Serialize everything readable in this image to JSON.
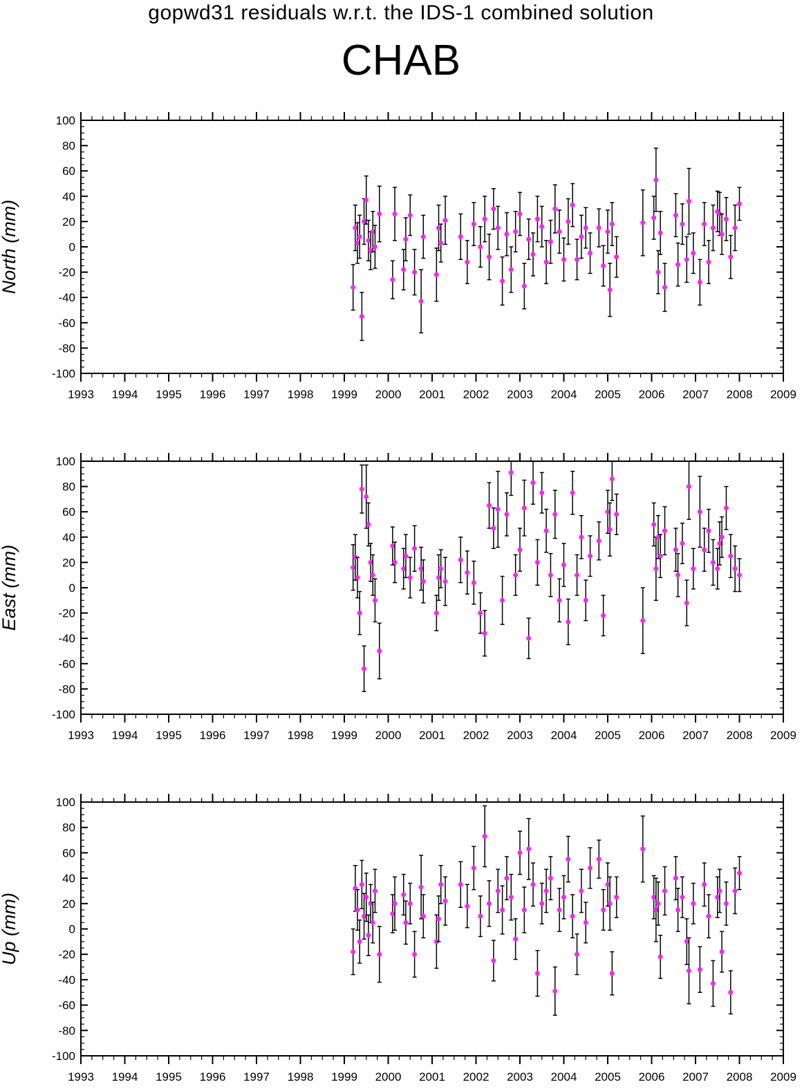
{
  "header": {
    "subtitle": "gopwd31 residuals w.r.t. the IDS-1 combined solution",
    "title": "CHAB"
  },
  "colors": {
    "point": "#ff22ff",
    "errorbar": "#000000",
    "axis": "#000000"
  },
  "chart_data": [
    {
      "type": "scatter",
      "ylabel": "North (mm)",
      "xlim": [
        1993,
        2009
      ],
      "ylim": [
        -100,
        100
      ],
      "xticks": [
        1993,
        1994,
        1995,
        1996,
        1997,
        1998,
        1999,
        2000,
        2001,
        2002,
        2003,
        2004,
        2005,
        2006,
        2007,
        2008,
        2009
      ],
      "yticks": [
        -100,
        -80,
        -60,
        -40,
        -20,
        0,
        20,
        40,
        60,
        80,
        100
      ],
      "grid": false,
      "series": [
        {
          "x": [
            1999.2,
            1999.25,
            1999.3,
            1999.35,
            1999.4,
            1999.45,
            1999.5,
            1999.55,
            1999.6,
            1999.65,
            1999.7,
            1999.8,
            2000.1,
            2000.15,
            2000.35,
            2000.4,
            2000.5,
            2000.6,
            2000.75,
            2000.8,
            2001.1,
            2001.15,
            2001.2,
            2001.3,
            2001.65,
            2001.8,
            2001.95,
            2002.1,
            2002.2,
            2002.3,
            2002.4,
            2002.5,
            2002.6,
            2002.7,
            2002.8,
            2002.9,
            2003.0,
            2003.1,
            2003.2,
            2003.3,
            2003.4,
            2003.5,
            2003.6,
            2003.7,
            2003.8,
            2003.9,
            2004.0,
            2004.1,
            2004.2,
            2004.3,
            2004.4,
            2004.5,
            2004.6,
            2004.8,
            2004.9,
            2005.0,
            2005.05,
            2005.1,
            2005.2,
            2005.8,
            2006.05,
            2006.1,
            2006.15,
            2006.2,
            2006.3,
            2006.55,
            2006.6,
            2006.7,
            2006.8,
            2006.85,
            2006.95,
            2007.1,
            2007.2,
            2007.3,
            2007.4,
            2007.5,
            2007.55,
            2007.6,
            2007.7,
            2007.8,
            2007.9,
            2008.0
          ],
          "y": [
            -32,
            15,
            3,
            8,
            -55,
            20,
            37,
            5,
            -3,
            12,
            0,
            26,
            -26,
            26,
            -18,
            6,
            25,
            -20,
            -43,
            8,
            -22,
            15,
            3,
            21,
            8,
            -12,
            18,
            0,
            22,
            -8,
            30,
            15,
            -27,
            10,
            -18,
            12,
            26,
            -31,
            6,
            -6,
            22,
            16,
            -12,
            4,
            30,
            12,
            -10,
            20,
            33,
            -10,
            8,
            15,
            -5,
            15,
            -15,
            12,
            -34,
            18,
            -8,
            19,
            23,
            53,
            -20,
            11,
            -32,
            25,
            -14,
            18,
            -10,
            36,
            -5,
            -28,
            18,
            -12,
            15,
            28,
            26,
            10,
            22,
            -8,
            15,
            34
          ],
          "err": [
            18,
            18,
            16,
            17,
            19,
            18,
            19,
            16,
            15,
            16,
            17,
            22,
            15,
            21,
            16,
            17,
            16,
            18,
            25,
            17,
            21,
            18,
            15,
            19,
            18,
            17,
            17,
            16,
            18,
            18,
            16,
            17,
            19,
            17,
            18,
            16,
            17,
            18,
            16,
            17,
            18,
            16,
            17,
            17,
            19,
            17,
            17,
            18,
            17,
            16,
            17,
            16,
            16,
            15,
            16,
            17,
            21,
            17,
            16,
            26,
            17,
            25,
            17,
            17,
            19,
            17,
            17,
            16,
            18,
            26,
            16,
            18,
            17,
            17,
            18,
            16,
            17,
            16,
            17,
            17,
            18,
            13
          ]
        }
      ]
    },
    {
      "type": "scatter",
      "ylabel": "East (mm)",
      "xlim": [
        1993,
        2009
      ],
      "ylim": [
        -100,
        100
      ],
      "xticks": [
        1993,
        1994,
        1995,
        1996,
        1997,
        1998,
        1999,
        2000,
        2001,
        2002,
        2003,
        2004,
        2005,
        2006,
        2007,
        2008,
        2009
      ],
      "yticks": [
        -100,
        -80,
        -60,
        -40,
        -20,
        0,
        20,
        40,
        60,
        80,
        100
      ],
      "grid": false,
      "series": [
        {
          "x": [
            1999.2,
            1999.25,
            1999.3,
            1999.35,
            1999.4,
            1999.45,
            1999.5,
            1999.55,
            1999.6,
            1999.65,
            1999.7,
            1999.8,
            2000.1,
            2000.15,
            2000.35,
            2000.4,
            2000.5,
            2000.6,
            2000.75,
            2000.8,
            2001.1,
            2001.15,
            2001.2,
            2001.3,
            2001.65,
            2001.8,
            2001.95,
            2002.1,
            2002.2,
            2002.3,
            2002.4,
            2002.5,
            2002.6,
            2002.7,
            2002.8,
            2002.9,
            2003.0,
            2003.1,
            2003.2,
            2003.3,
            2003.4,
            2003.5,
            2003.6,
            2003.7,
            2003.8,
            2003.9,
            2004.0,
            2004.1,
            2004.2,
            2004.3,
            2004.4,
            2004.5,
            2004.6,
            2004.8,
            2004.9,
            2005.0,
            2005.05,
            2005.1,
            2005.2,
            2005.8,
            2006.05,
            2006.1,
            2006.15,
            2006.2,
            2006.3,
            2006.55,
            2006.6,
            2006.7,
            2006.8,
            2006.85,
            2006.95,
            2007.1,
            2007.2,
            2007.3,
            2007.4,
            2007.5,
            2007.55,
            2007.6,
            2007.7,
            2007.8,
            2007.9,
            2008.0
          ],
          "y": [
            16,
            24,
            8,
            -20,
            78,
            -64,
            72,
            50,
            20,
            10,
            -10,
            -50,
            33,
            20,
            15,
            25,
            8,
            31,
            15,
            5,
            -20,
            8,
            15,
            5,
            22,
            12,
            4,
            -20,
            -36,
            65,
            47,
            62,
            -10,
            58,
            91,
            10,
            30,
            63,
            -40,
            83,
            20,
            75,
            45,
            10,
            58,
            -10,
            18,
            -27,
            75,
            10,
            40,
            -10,
            25,
            37,
            -22,
            60,
            46,
            86,
            58,
            -26,
            50,
            15,
            40,
            25,
            45,
            30,
            10,
            35,
            -12,
            80,
            15,
            60,
            30,
            45,
            20,
            15,
            35,
            40,
            63,
            25,
            15,
            10
          ],
          "err": [
            18,
            18,
            16,
            17,
            19,
            18,
            25,
            17,
            15,
            16,
            17,
            22,
            15,
            16,
            16,
            17,
            16,
            18,
            17,
            17,
            14,
            18,
            15,
            19,
            18,
            17,
            17,
            16,
            18,
            18,
            16,
            30,
            19,
            17,
            18,
            16,
            17,
            22,
            16,
            17,
            18,
            16,
            17,
            17,
            19,
            17,
            17,
            18,
            17,
            16,
            17,
            16,
            16,
            15,
            16,
            17,
            21,
            17,
            16,
            26,
            17,
            25,
            17,
            17,
            19,
            17,
            17,
            16,
            18,
            26,
            16,
            28,
            17,
            17,
            18,
            16,
            17,
            16,
            17,
            17,
            18,
            13
          ]
        }
      ]
    },
    {
      "type": "scatter",
      "ylabel": "Up (mm)",
      "xlim": [
        1993,
        2009
      ],
      "ylim": [
        -100,
        100
      ],
      "xticks": [
        1993,
        1994,
        1995,
        1996,
        1997,
        1998,
        1999,
        2000,
        2001,
        2002,
        2003,
        2004,
        2005,
        2006,
        2007,
        2008,
        2009
      ],
      "yticks": [
        -100,
        -80,
        -60,
        -40,
        -20,
        0,
        20,
        40,
        60,
        80,
        100
      ],
      "grid": false,
      "series": [
        {
          "x": [
            1999.2,
            1999.25,
            1999.3,
            1999.35,
            1999.4,
            1999.45,
            1999.5,
            1999.55,
            1999.6,
            1999.65,
            1999.7,
            1999.8,
            2000.1,
            2000.15,
            2000.35,
            2000.4,
            2000.5,
            2000.6,
            2000.75,
            2000.8,
            2001.1,
            2001.15,
            2001.2,
            2001.3,
            2001.65,
            2001.8,
            2001.95,
            2002.1,
            2002.2,
            2002.3,
            2002.4,
            2002.5,
            2002.6,
            2002.7,
            2002.8,
            2002.9,
            2003.0,
            2003.1,
            2003.2,
            2003.3,
            2003.4,
            2003.5,
            2003.6,
            2003.7,
            2003.8,
            2003.9,
            2004.0,
            2004.1,
            2004.2,
            2004.3,
            2004.4,
            2004.5,
            2004.6,
            2004.8,
            2004.9,
            2005.0,
            2005.05,
            2005.1,
            2005.2,
            2005.8,
            2006.05,
            2006.1,
            2006.15,
            2006.2,
            2006.3,
            2006.55,
            2006.6,
            2006.7,
            2006.8,
            2006.85,
            2006.95,
            2007.1,
            2007.2,
            2007.3,
            2007.4,
            2007.5,
            2007.55,
            2007.6,
            2007.7,
            2007.8,
            2007.9,
            2008.0
          ],
          "y": [
            -18,
            32,
            15,
            -10,
            35,
            10,
            25,
            -5,
            20,
            5,
            30,
            -20,
            12,
            20,
            27,
            5,
            20,
            -20,
            33,
            10,
            -10,
            8,
            35,
            22,
            35,
            18,
            48,
            10,
            73,
            20,
            -25,
            30,
            15,
            40,
            25,
            -8,
            60,
            15,
            63,
            35,
            -35,
            20,
            30,
            40,
            -49,
            15,
            25,
            55,
            10,
            -20,
            30,
            5,
            48,
            55,
            15,
            35,
            20,
            -35,
            25,
            63,
            25,
            15,
            20,
            -22,
            30,
            40,
            15,
            25,
            -10,
            -33,
            20,
            -32,
            35,
            10,
            -43,
            25,
            30,
            -18,
            20,
            -50,
            30,
            44
          ],
          "err": [
            18,
            18,
            16,
            17,
            19,
            18,
            19,
            16,
            15,
            16,
            17,
            22,
            15,
            21,
            16,
            17,
            16,
            18,
            25,
            17,
            21,
            18,
            15,
            19,
            18,
            17,
            17,
            16,
            24,
            18,
            16,
            17,
            19,
            17,
            18,
            16,
            17,
            18,
            24,
            17,
            18,
            16,
            17,
            17,
            19,
            17,
            17,
            18,
            17,
            16,
            17,
            16,
            16,
            15,
            16,
            17,
            21,
            17,
            16,
            26,
            17,
            25,
            17,
            17,
            19,
            17,
            17,
            16,
            18,
            26,
            16,
            18,
            17,
            17,
            18,
            16,
            17,
            16,
            17,
            17,
            18,
            13
          ]
        }
      ]
    }
  ]
}
